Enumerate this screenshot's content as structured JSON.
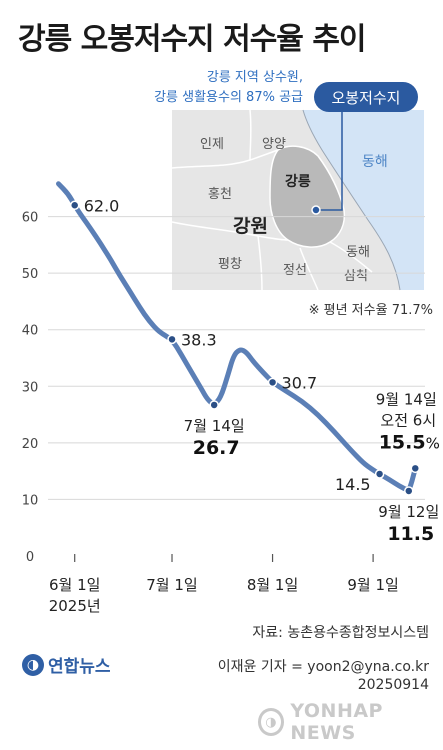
{
  "title": "강릉 오봉저수지 저수율 추이",
  "map": {
    "subtitle": "강릉 지역 상수원,\n강릉 생활용수의 87% 공급",
    "callout": "오봉저수지",
    "sea_label": "동해",
    "region_labels": [
      "인제",
      "양양",
      "홍천",
      "강릉",
      "강원",
      "평창",
      "정선",
      "동해",
      "삼척"
    ],
    "average_note": "※ 평년 저수율 71.7%"
  },
  "chart_data": {
    "type": "line",
    "title": "강릉 오봉저수지 저수율 추이",
    "ylim": [
      0,
      70
    ],
    "yticks": [
      0,
      10,
      20,
      30,
      40,
      50,
      60
    ],
    "xlim": [
      "2025-05-25",
      "2025-09-17"
    ],
    "x_ticks": [
      {
        "date": "2025-06-01",
        "label": "6월 1일",
        "sublabel": "2025년"
      },
      {
        "date": "2025-07-01",
        "label": "7월 1일",
        "sublabel": ""
      },
      {
        "date": "2025-08-01",
        "label": "8월 1일",
        "sublabel": ""
      },
      {
        "date": "2025-09-01",
        "label": "9월 1일",
        "sublabel": ""
      }
    ],
    "series": [
      {
        "color": "#5b7fb6",
        "points": [
          [
            "2025-05-27",
            65.8
          ],
          [
            "2025-05-30",
            64.0
          ],
          [
            "2025-06-01",
            62.0
          ],
          [
            "2025-06-03",
            60.2
          ],
          [
            "2025-06-06",
            57.8
          ],
          [
            "2025-06-09",
            55.2
          ],
          [
            "2025-06-12",
            52.5
          ],
          [
            "2025-06-15",
            49.5
          ],
          [
            "2025-06-18",
            46.8
          ],
          [
            "2025-06-21",
            44.0
          ],
          [
            "2025-06-24",
            41.5
          ],
          [
            "2025-06-27",
            39.6
          ],
          [
            "2025-07-01",
            38.3
          ],
          [
            "2025-07-04",
            35.5
          ],
          [
            "2025-07-07",
            32.5
          ],
          [
            "2025-07-10",
            29.6
          ],
          [
            "2025-07-12",
            27.6
          ],
          [
            "2025-07-14",
            26.7
          ],
          [
            "2025-07-16",
            28.0
          ],
          [
            "2025-07-18",
            31.5
          ],
          [
            "2025-07-20",
            35.5
          ],
          [
            "2025-07-22",
            36.6
          ],
          [
            "2025-07-24",
            36.0
          ],
          [
            "2025-07-26",
            34.4
          ],
          [
            "2025-07-29",
            32.5
          ],
          [
            "2025-08-01",
            30.7
          ],
          [
            "2025-08-05",
            29.2
          ],
          [
            "2025-08-10",
            27.4
          ],
          [
            "2025-08-15",
            25.0
          ],
          [
            "2025-08-20",
            22.0
          ],
          [
            "2025-08-25",
            18.8
          ],
          [
            "2025-08-29",
            16.4
          ],
          [
            "2025-09-01",
            15.2
          ],
          [
            "2025-09-03",
            14.5
          ],
          [
            "2025-09-06",
            13.5
          ],
          [
            "2025-09-09",
            12.4
          ],
          [
            "2025-09-12",
            11.5
          ],
          [
            "2025-09-13",
            13.2
          ],
          [
            "2025-09-14",
            15.5
          ]
        ]
      }
    ],
    "labels": [
      {
        "date": "2025-06-01",
        "value": 62.0,
        "text": "62.0",
        "bold": false,
        "pos": "right"
      },
      {
        "date": "2025-07-01",
        "value": 38.3,
        "text": "38.3",
        "bold": false,
        "pos": "right"
      },
      {
        "date": "2025-07-14",
        "value": 26.7,
        "text": "26.7",
        "caption": "7월 14일",
        "bold": true,
        "pos": "below"
      },
      {
        "date": "2025-08-01",
        "value": 30.7,
        "text": "30.7",
        "bold": false,
        "pos": "right"
      },
      {
        "date": "2025-09-03",
        "value": 14.5,
        "text": "14.5",
        "bold": false,
        "pos": "left"
      },
      {
        "date": "2025-09-12",
        "value": 11.5,
        "text": "11.5",
        "caption": "9월 12일",
        "bold": true,
        "pos": "below"
      },
      {
        "date": "2025-09-14",
        "value": 15.5,
        "text": "15.5",
        "unit": "%",
        "caption": "9월 14일",
        "caption2": "오전 6시",
        "bold": true,
        "pos": "above"
      }
    ]
  },
  "footer": {
    "source": "자료: 농촌용수종합정보시스템",
    "credit": "이재윤 기자 = yoon2@yna.co.kr\n20250914",
    "logo_text": "연합뉴스",
    "watermark": "YONHAP NEWS"
  }
}
